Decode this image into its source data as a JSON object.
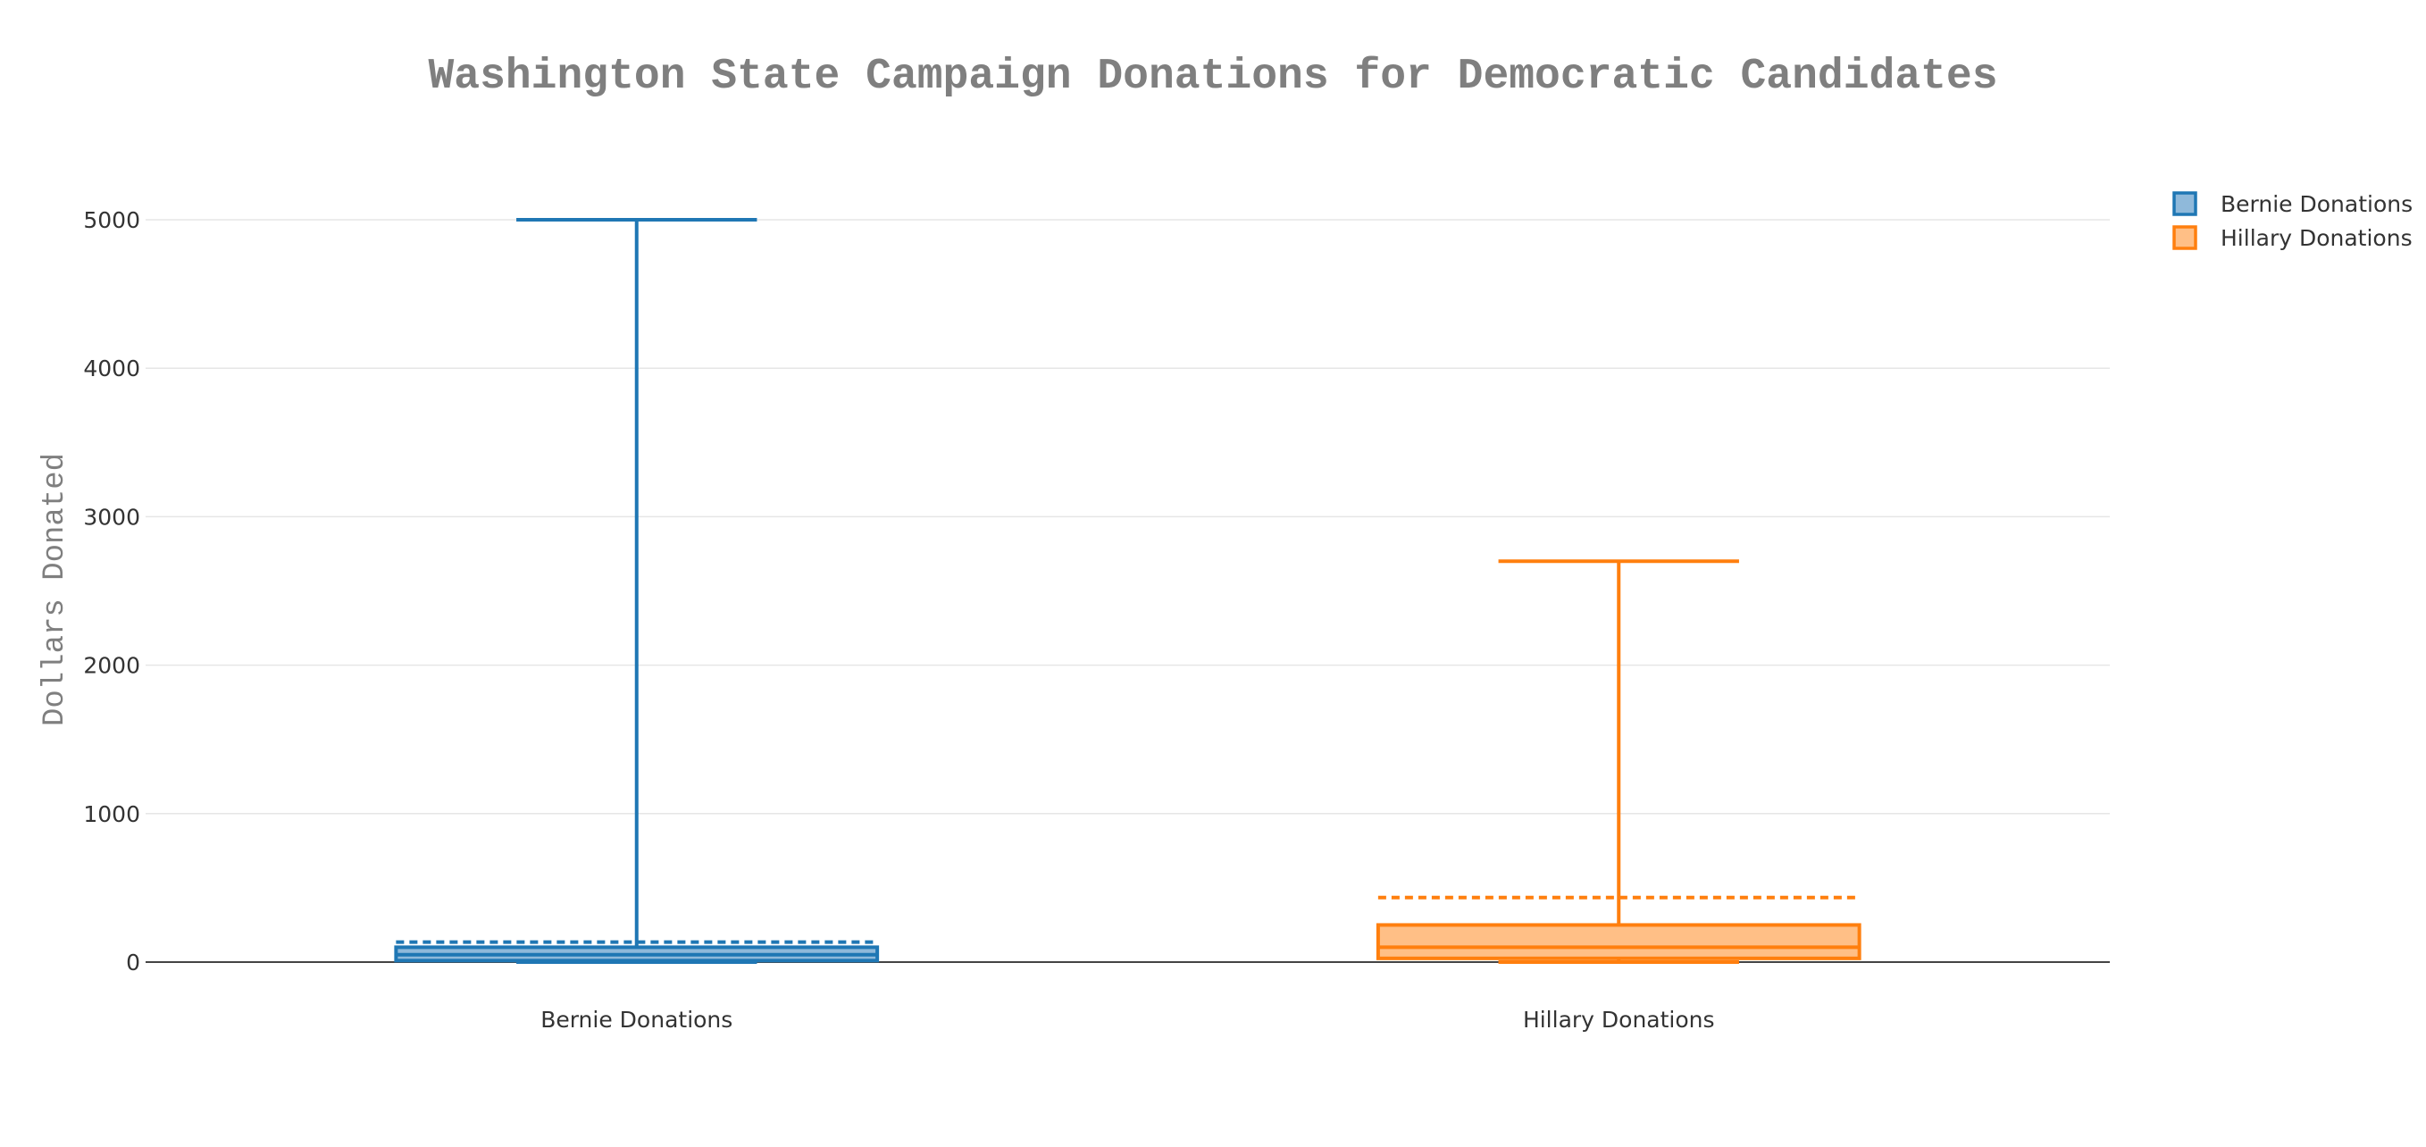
{
  "chart_data": {
    "type": "box",
    "title": "Washington State Campaign Donations for Democratic Candidates",
    "ylabel": "Dollars Donated",
    "xlabel": "",
    "ylim": [
      0,
      5000
    ],
    "yticks": [
      0,
      1000,
      2000,
      3000,
      4000,
      5000
    ],
    "grid": true,
    "legend_placement": "top-right",
    "categories": [
      "Bernie Donations",
      "Hillary Donations"
    ],
    "series": [
      {
        "name": "Bernie Donations",
        "color": "#1f77b4",
        "fill": "#8fb9da",
        "box": {
          "lower_fence": 0,
          "q1": 10,
          "median": 50,
          "q3": 100,
          "upper_fence": 5000,
          "mean": 135
        }
      },
      {
        "name": "Hillary Donations",
        "color": "#ff7f0e",
        "fill": "#ffbf86",
        "box": {
          "lower_fence": 0,
          "q1": 25,
          "median": 100,
          "q3": 250,
          "upper_fence": 2700,
          "mean": 435
        }
      }
    ]
  }
}
